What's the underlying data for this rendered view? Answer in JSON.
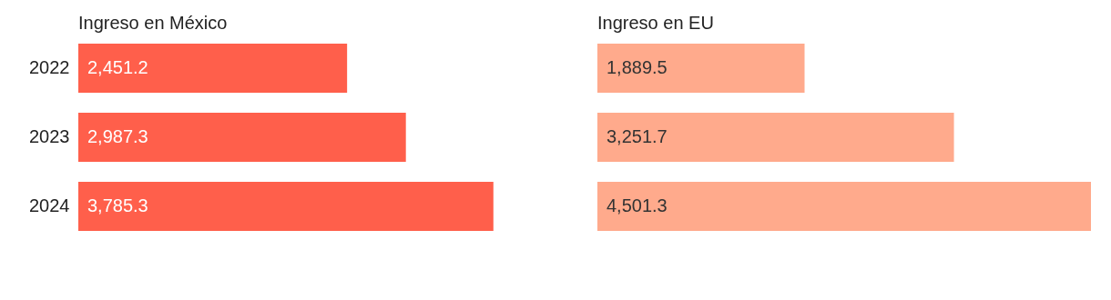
{
  "chart_data": [
    {
      "type": "bar",
      "orientation": "horizontal",
      "title": "Ingreso en México",
      "categories": [
        "2022",
        "2023",
        "2024"
      ],
      "values": [
        2451.2,
        2987.3,
        3785.3
      ],
      "value_labels": [
        "2,451.2",
        "2,987.3",
        "3,785.3"
      ],
      "color": "#ff5f4b"
    },
    {
      "type": "bar",
      "orientation": "horizontal",
      "title": "Ingreso en EU",
      "categories": [
        "2022",
        "2023",
        "2024"
      ],
      "values": [
        1889.5,
        3251.7,
        4501.3
      ],
      "value_labels": [
        "1,889.5",
        "3,251.7",
        "4,501.3"
      ],
      "color": "#ffaa8c",
      "tick_labels": false
    }
  ]
}
